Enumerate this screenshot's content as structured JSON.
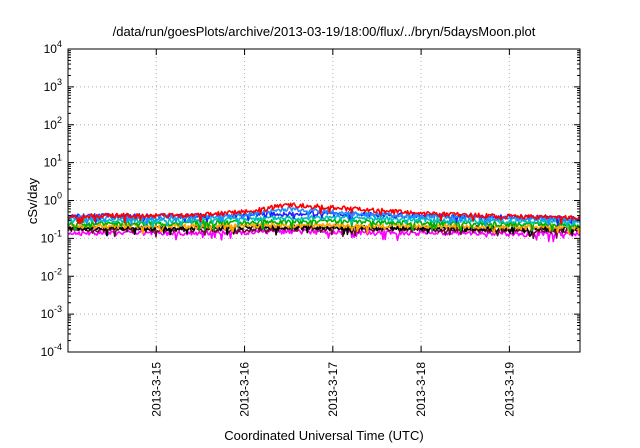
{
  "chart_data": {
    "type": "line",
    "title": "/data/run/goesPlots/archive/2013-03-19/18:00/flux/../bryn/5daysMoon.plot",
    "xlabel": "Coordinated Universal Time (UTC)",
    "ylabel": "cSv/day",
    "yscale": "log",
    "ylim": [
      0.0001,
      10000
    ],
    "xlim": [
      0,
      5.8
    ],
    "x_ticks": [
      {
        "x": 1,
        "label": "2013-3-15"
      },
      {
        "x": 2,
        "label": "2013-3-16"
      },
      {
        "x": 3,
        "label": "2013-3-17"
      },
      {
        "x": 4,
        "label": "2013-3-18"
      },
      {
        "x": 5,
        "label": "2013-3-19"
      }
    ],
    "y_ticks": [
      {
        "value": 0.0001,
        "base": "10",
        "exp": "-4"
      },
      {
        "value": 0.001,
        "base": "10",
        "exp": "-3"
      },
      {
        "value": 0.01,
        "base": "10",
        "exp": "-2"
      },
      {
        "value": 0.1,
        "base": "10",
        "exp": "-1"
      },
      {
        "value": 1,
        "base": "10",
        "exp": "0"
      },
      {
        "value": 10,
        "base": "10",
        "exp": "1"
      },
      {
        "value": 100,
        "base": "10",
        "exp": "2"
      },
      {
        "value": 1000,
        "base": "10",
        "exp": "3"
      },
      {
        "value": 10000,
        "base": "10",
        "exp": "4"
      }
    ],
    "grid": true,
    "series": [
      {
        "color": "#ff00ff",
        "x": [
          0,
          0.5,
          1,
          1.5,
          2,
          2.5,
          3,
          3.5,
          4,
          4.5,
          5,
          5.5,
          5.8
        ],
        "values": [
          0.14,
          0.14,
          0.14,
          0.14,
          0.14,
          0.15,
          0.15,
          0.14,
          0.14,
          0.14,
          0.13,
          0.13,
          0.13
        ]
      },
      {
        "color": "#6a0d3a",
        "x": [
          0,
          0.5,
          1,
          1.5,
          2,
          2.5,
          3,
          3.5,
          4,
          4.5,
          5,
          5.5,
          5.8
        ],
        "values": [
          0.17,
          0.17,
          0.17,
          0.17,
          0.17,
          0.18,
          0.18,
          0.17,
          0.17,
          0.17,
          0.16,
          0.16,
          0.16
        ]
      },
      {
        "color": "#000000",
        "x": [
          0,
          0.5,
          1,
          1.5,
          2,
          2.5,
          3,
          3.5,
          4,
          4.5,
          5,
          5.5,
          5.8
        ],
        "values": [
          0.19,
          0.19,
          0.19,
          0.19,
          0.2,
          0.2,
          0.2,
          0.19,
          0.19,
          0.19,
          0.18,
          0.18,
          0.18
        ]
      },
      {
        "color": "#ffa500",
        "x": [
          0,
          0.5,
          1,
          1.5,
          2,
          2.5,
          3,
          3.5,
          4,
          4.5,
          5,
          5.5,
          5.8
        ],
        "values": [
          0.21,
          0.21,
          0.21,
          0.21,
          0.22,
          0.22,
          0.22,
          0.21,
          0.21,
          0.21,
          0.2,
          0.2,
          0.2
        ]
      },
      {
        "color": "#00b000",
        "x": [
          0,
          0.5,
          1,
          1.5,
          2,
          2.5,
          3,
          3.5,
          4,
          4.5,
          5,
          5.5,
          5.8
        ],
        "values": [
          0.25,
          0.25,
          0.25,
          0.26,
          0.27,
          0.28,
          0.28,
          0.27,
          0.26,
          0.25,
          0.24,
          0.24,
          0.23
        ]
      },
      {
        "color": "#00bfbf",
        "x": [
          0,
          0.5,
          1,
          1.5,
          2,
          2.5,
          3,
          3.5,
          4,
          4.5,
          5,
          5.5,
          5.8
        ],
        "values": [
          0.3,
          0.3,
          0.3,
          0.31,
          0.33,
          0.35,
          0.35,
          0.33,
          0.31,
          0.3,
          0.28,
          0.28,
          0.27
        ]
      },
      {
        "color": "#2222ff",
        "x": [
          0,
          0.5,
          1,
          1.5,
          2,
          2.5,
          3,
          3.5,
          4,
          4.5,
          5,
          5.5,
          5.8
        ],
        "values": [
          0.38,
          0.4,
          0.39,
          0.4,
          0.42,
          0.45,
          0.46,
          0.42,
          0.4,
          0.38,
          0.36,
          0.35,
          0.33
        ]
      },
      {
        "color": "#1e90ff",
        "x": [
          0,
          0.5,
          1,
          1.5,
          2,
          2.25,
          2.5,
          2.75,
          3,
          3.25,
          3.5,
          4,
          4.5,
          5,
          5.5,
          5.8
        ],
        "values": [
          0.35,
          0.36,
          0.35,
          0.38,
          0.42,
          0.5,
          0.6,
          0.55,
          0.5,
          0.45,
          0.42,
          0.38,
          0.36,
          0.34,
          0.33,
          0.31
        ]
      },
      {
        "color": "#ff0000",
        "x": [
          0,
          0.5,
          1,
          1.5,
          2,
          2.25,
          2.5,
          2.75,
          3,
          3.25,
          3.5,
          4,
          4.5,
          5,
          5.5,
          5.8
        ],
        "values": [
          0.38,
          0.4,
          0.4,
          0.42,
          0.5,
          0.62,
          0.78,
          0.72,
          0.65,
          0.6,
          0.55,
          0.45,
          0.42,
          0.38,
          0.36,
          0.34
        ]
      }
    ]
  }
}
